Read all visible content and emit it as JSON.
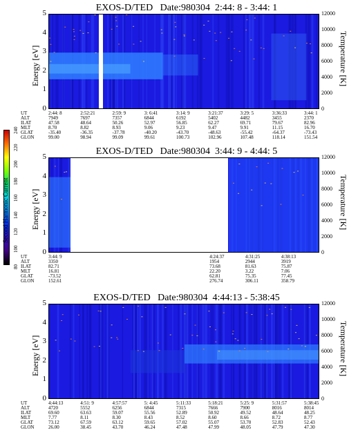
{
  "chart_data": [
    {
      "type": "heatmap",
      "title": "EXOS-D/TED   Date:980304  2:44: 8 - 3:44: 1",
      "ylabel": "Energy [eV]",
      "ylabel_right": "Temperature [K]",
      "ylim": [
        0,
        5
      ],
      "ylim_right": [
        0,
        12000
      ],
      "yticks": [
        "0",
        "1",
        "2",
        "3",
        "4",
        "5"
      ],
      "yticks_right": [
        "0",
        "2000",
        "4000",
        "6000",
        "8000",
        "10000",
        "12000"
      ],
      "data_gaps": [
        [
          0.185,
          0.2
        ]
      ],
      "ephemeris": {
        "names": [
          "UT",
          "ALT",
          "ILAT",
          "MLT",
          "GLAT",
          "GLON"
        ],
        "columns": [
          [
            "2:44: 8",
            "7949",
            "47.58",
            "8.70",
            "-35.40",
            "99.00"
          ],
          [
            "2:52:21",
            "7697",
            "48.64",
            "8.82",
            "-36.35",
            "98.94"
          ],
          [
            "2:59: 9",
            "7357",
            "50.26",
            "8.93",
            "-37.78",
            "99.09"
          ],
          [
            "3: 6:41",
            "6844",
            "52.97",
            "9.06",
            "-40.20",
            "99.61"
          ],
          [
            "3:14: 9",
            "6192",
            "56.85",
            "9.23",
            "-43.70",
            "100.73"
          ],
          [
            "3:21:37",
            "5402",
            "62.27",
            "9.47",
            "-48.63",
            "102.96"
          ],
          [
            "3:29: 5",
            "4482",
            "69.71",
            "9.91",
            "-55.42",
            "107.48"
          ],
          [
            "3:36:33",
            "3455",
            "79.67",
            "11.15",
            "-64.37",
            "118.14"
          ],
          [
            "3:44: 1",
            "2370",
            "82.96",
            "16.70",
            "-73.43",
            "151.54"
          ]
        ]
      }
    },
    {
      "type": "heatmap",
      "title": "EXOS-D/TED   Date:980304  3:44: 9 - 4:44: 5",
      "ylabel": "Energy [eV]",
      "ylabel_right": "Temperature [K]",
      "ylim": [
        0,
        5
      ],
      "ylim_right": [
        0,
        12000
      ],
      "yticks": [
        "0",
        "1",
        "2",
        "3",
        "4",
        "5"
      ],
      "yticks_right": [
        "0",
        "2000",
        "4000",
        "6000",
        "8000",
        "10000",
        "12000"
      ],
      "data_gaps": [
        [
          0.08,
          0.665
        ]
      ],
      "ephemeris": {
        "names": [
          "UT",
          "ALT",
          "ILAT",
          "MLT",
          "GLAT",
          "GLON"
        ],
        "columns": [
          [
            "3:44: 9",
            "3350",
            "82.71",
            "16.81",
            "-73.52",
            "152.61"
          ],
          [
            "4:24:37",
            "1954",
            "73.68",
            "22.20",
            "62.81",
            "276.74"
          ],
          [
            "4:31:25",
            "2944",
            "81.63",
            "3.22",
            "75.35",
            "306.11"
          ],
          [
            "4:38:13",
            "3919",
            "75.87",
            "7.06",
            "77.45",
            "358.79"
          ]
        ]
      }
    },
    {
      "type": "heatmap",
      "title": "EXOS-D/TED   Date:980304  4:44:13 - 5:38:45",
      "ylabel": "Energy [eV]",
      "ylabel_right": "Temperature [K]",
      "ylim": [
        0,
        5
      ],
      "ylim_right": [
        0,
        12000
      ],
      "yticks": [
        "0",
        "1",
        "2",
        "3",
        "4",
        "5"
      ],
      "yticks_right": [
        "0",
        "2000",
        "4000",
        "6000",
        "8000",
        "10000",
        "12000"
      ],
      "data_gaps": [],
      "ephemeris": {
        "names": [
          "UT",
          "ALT",
          "ILAT",
          "MLT",
          "GLAT",
          "GLON"
        ],
        "columns": [
          [
            "4:44:13",
            "4720",
            "69.60",
            "7.77",
            "73.12",
            "26.00"
          ],
          [
            "4:51: 9",
            "5552",
            "63.63",
            "8.11",
            "67.59",
            "38.45"
          ],
          [
            "4:57:57",
            "6256",
            "59.07",
            "8.30",
            "63.12",
            "43.70"
          ],
          [
            "5: 4:45",
            "6844",
            "55.56",
            "8.43",
            "59.65",
            "46.24"
          ],
          [
            "5:11:33",
            "7315",
            "52.89",
            "8.52",
            "57.02",
            "47.48"
          ],
          [
            "5:18:21",
            "7666",
            "50.92",
            "8.60",
            "55.07",
            "47.99"
          ],
          [
            "5:25: 9",
            "7900",
            "49.52",
            "8.66",
            "53.70",
            "48.05"
          ],
          [
            "5:31:57",
            "8016",
            "48.64",
            "8.72",
            "52.83",
            "47.79"
          ],
          [
            "5:38:45",
            "8014",
            "48.25",
            "8.77",
            "52.43",
            "47.30"
          ]
        ]
      }
    }
  ],
  "colorbar": {
    "label": "Second Harmonic Current",
    "ticks": [
      "80",
      "100",
      "120",
      "140",
      "160",
      "180",
      "200",
      "220",
      "240"
    ]
  },
  "colors": {
    "background": "#1a1ae0",
    "band": "#2f7fff",
    "gap": "#ffffff"
  }
}
